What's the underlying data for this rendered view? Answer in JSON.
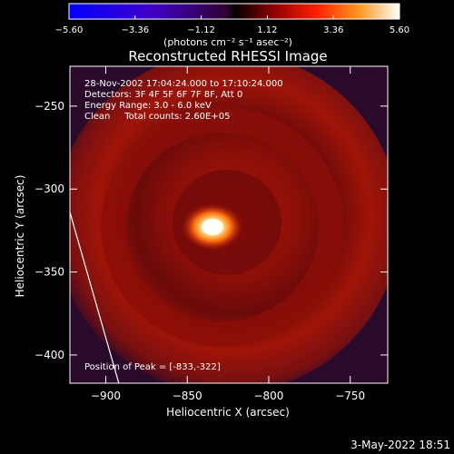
{
  "chart_data": {
    "type": "heatmap",
    "title": "Reconstructed RHESSI Image",
    "xlabel": "Heliocentric X (arcsec)",
    "ylabel": "Heliocentric Y (arcsec)",
    "xlim": [
      -922,
      -727
    ],
    "ylim": [
      -417,
      -226
    ],
    "x_ticks": [
      -900,
      -850,
      -800,
      -750
    ],
    "y_ticks": [
      -250,
      -300,
      -350,
      -400
    ],
    "x_tick_labels": [
      "−900",
      "−850",
      "−800",
      "−750"
    ],
    "y_tick_labels": [
      "−250",
      "−300",
      "−350",
      "−400"
    ],
    "colorbar": {
      "range": [
        -5.6,
        5.6
      ],
      "tick_labels": [
        "−5.60",
        "−3.36",
        "−1.12",
        "1.12",
        "3.36",
        "5.60"
      ],
      "unit_label": "(photons cm⁻² s⁻¹ asec⁻²)",
      "colors": [
        "#0000ff",
        "#3a00d0",
        "#6a00a0",
        "#2a0000",
        "#b00000",
        "#ff2000",
        "#ff8000",
        "#ffd040",
        "#ffffff"
      ]
    },
    "annotations": [
      "28-Nov-2002 17:04:24.000 to 17:10:24.000",
      "Detectors: 3F 4F 5F 6F 7F 8F, Att 0",
      "Energy Range: 3.0 - 6.0 keV",
      "Clean     Total counts: 2.60E+05"
    ],
    "peak_label": "Position of Peak = [-833,-322]",
    "peak": [
      -833,
      -322
    ],
    "limb_line": [
      [
        -922,
        -314
      ],
      [
        -892,
        -417
      ]
    ],
    "image_colors": {
      "background": "#2a0a2a",
      "ring": "#9a1208",
      "ring_dark": "#5a0a0c",
      "center": "#ffffff",
      "core": "#ffe070"
    }
  },
  "footer": {
    "date": "3-May-2022 18:51"
  }
}
